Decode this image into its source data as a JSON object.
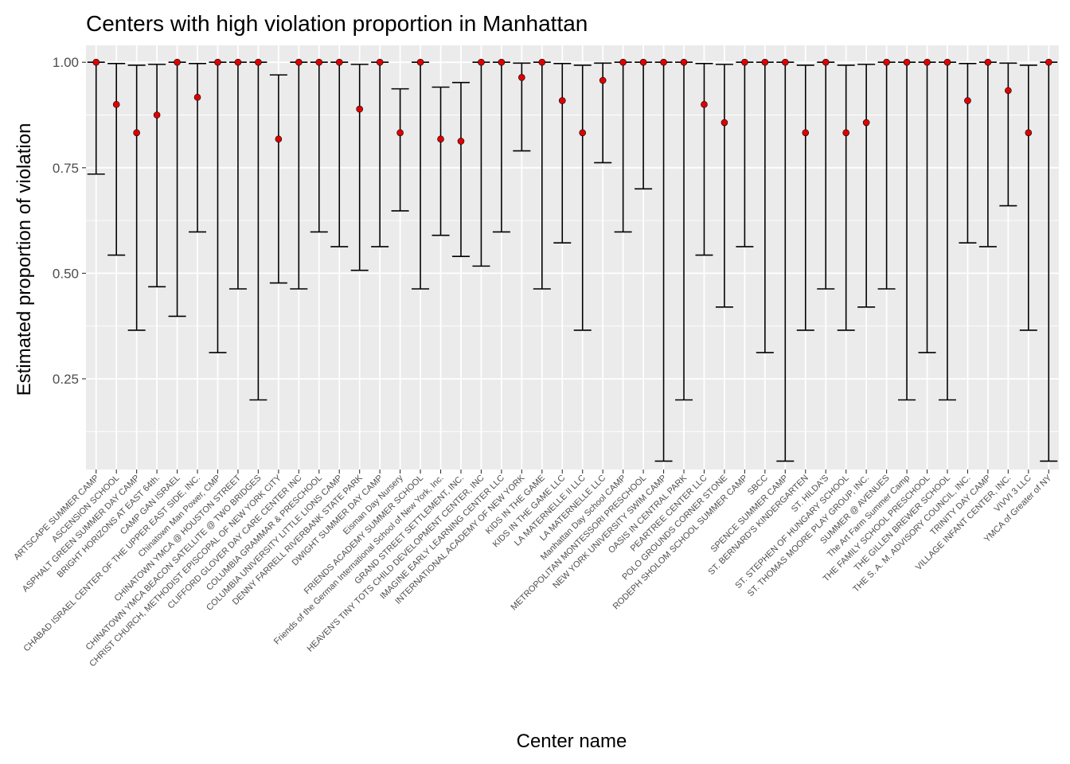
{
  "chart_data": {
    "type": "errorbar",
    "title": "Centers with high violation proportion in Manhattan",
    "xlabel": "Center name",
    "ylabel": "Estimated proportion of violation",
    "ylim": [
      0.035,
      1.04
    ],
    "yticks": [
      0.25,
      0.5,
      0.75,
      1.0
    ],
    "ytick_labels": [
      "0.25",
      "0.50",
      "0.75",
      "1.00"
    ],
    "grid": true,
    "legend": "none",
    "colors": {
      "panel": "#ebebeb",
      "grid": "#ffffff",
      "point": "#e00000",
      "point_edge": "#000000",
      "errorbar": "#000000"
    },
    "categories": [
      "ARTSCAPE SUMMER CAMP",
      "ASCENSION SCHOOL",
      "ASPHALT GREEN SUMMER DAY CAMP",
      "BRIGHT HORIZONS AT EAST 64th.",
      "CAMP GAN ISRAEL",
      "CHABAD ISRAEL CENTER OF THE UPPER EAST SIDE, INC.",
      "Chinatown Man Power, CMP",
      "CHINATOWN YMCA @ HOUSTON STREET",
      "CHINATOWN YMCA BEACON SATELLITE @ TWO BRIDGES",
      "CHRIST CHURCH, METHODIST EPISCOPAL OF NEW YORK CITY",
      "CLIFFORD GLOVER DAY CARE CENTER INC",
      "COLUMBIA GRAMMAR & PRESCHOOL",
      "COLUMBIA UNIVERSITY LITTLE LIONS CAMP",
      "DENNY FARRELL RIVERBANK STATE PARK",
      "DWIGHT SUMMER DAY CAMP",
      "Eisman Day Nursery",
      "FRIENDS ACADEMY SUMMER SCHOOL",
      "Friends of the German International School of New York, Inc.",
      "GRAND STREET SETTLEMENT, INC.",
      "HEAVEN'S TINY TOTS CHILD DEVELOPMENT CENTER, INC",
      "IMAGINE EARLY LEARNING CENTER LLC",
      "INTERNATIONAL ACADEMY OF NEW YORK",
      "KIDS IN THE GAME",
      "KIDS IN THE GAME LLC",
      "LA MATERNELLE II LLC",
      "LA MATERNELLE LLC",
      "Manhattan Day School CAMP",
      "METROPOLITAN MONTESSORI PRESCHOOL",
      "NEW YORK UNIVERSITY SWIM CAMP",
      "OASIS IN CENTRAL PARK",
      "PEARTREE CENTER LLC",
      "POLO GROUNDS CORNER STONE",
      "RODEPH SHOLOM SCHOOL SUMMER CAMP",
      "SBCC",
      "SPENCE SUMMER CAMP",
      "ST. BERNARD'S KINDERGARTEN",
      "ST. HILDA'S",
      "ST. STEPHEN OF HUNGARY SCHOOL",
      "ST. THOMAS MOORE PLAY GROUP, INC.",
      "SUMMER @ AVENUES",
      "The Art Farm Summer Camp",
      "THE FAMILY SCHOOL PRESCHOOL",
      "THE GILLEN BREWER SCHOOL",
      "THE S. A. M. ADVISORY COUNCIL, INC.",
      "TRINITY DAY CAMP",
      "VILLAGE INFANT CENTER, INC.",
      "VIVVI 3 LLC",
      "YMCA of Greater of NY"
    ],
    "estimate": [
      1.0,
      0.9,
      0.833,
      0.875,
      1.0,
      0.917,
      1.0,
      1.0,
      1.0,
      0.818,
      1.0,
      1.0,
      1.0,
      0.889,
      1.0,
      0.833,
      1.0,
      0.818,
      0.813,
      1.0,
      1.0,
      0.964,
      1.0,
      0.909,
      0.833,
      0.957,
      1.0,
      1.0,
      1.0,
      1.0,
      0.9,
      0.857,
      1.0,
      1.0,
      1.0,
      0.833,
      1.0,
      0.833,
      0.857,
      1.0,
      1.0,
      1.0,
      1.0,
      0.909,
      1.0,
      0.933,
      0.833,
      1.0
    ],
    "lower": [
      0.735,
      0.543,
      0.365,
      0.468,
      0.398,
      0.598,
      0.312,
      0.463,
      0.2,
      0.477,
      0.463,
      0.598,
      0.563,
      0.507,
      0.563,
      0.648,
      0.463,
      0.59,
      0.54,
      0.517,
      0.598,
      0.79,
      0.463,
      0.572,
      0.365,
      0.762,
      0.598,
      0.7,
      0.055,
      0.2,
      0.543,
      0.42,
      0.563,
      0.312,
      0.055,
      0.365,
      0.463,
      0.365,
      0.42,
      0.463,
      0.2,
      0.312,
      0.2,
      0.572,
      0.563,
      0.66,
      0.365,
      0.055
    ],
    "upper": [
      1.0,
      0.997,
      0.993,
      0.995,
      1.0,
      0.997,
      1.0,
      1.0,
      1.0,
      0.97,
      1.0,
      1.0,
      1.0,
      0.995,
      1.0,
      0.937,
      1.0,
      0.941,
      0.952,
      1.0,
      1.0,
      0.998,
      1.0,
      0.997,
      0.993,
      0.998,
      1.0,
      1.0,
      1.0,
      1.0,
      0.997,
      0.995,
      1.0,
      1.0,
      1.0,
      0.993,
      1.0,
      0.993,
      0.995,
      1.0,
      1.0,
      1.0,
      1.0,
      0.997,
      1.0,
      0.998,
      0.993,
      1.0
    ]
  }
}
